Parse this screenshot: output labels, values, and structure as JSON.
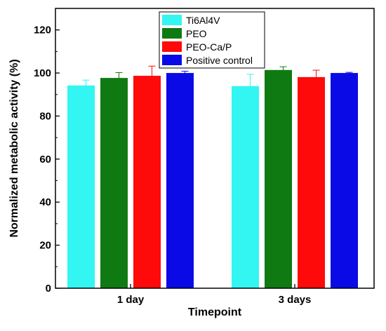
{
  "chart_data": {
    "type": "bar",
    "xlabel": "Timepoint",
    "ylabel": "Normalized metabolic activity (%)",
    "ylim": [
      0,
      130
    ],
    "yticks": [
      0,
      20,
      40,
      60,
      80,
      100,
      120
    ],
    "categories": [
      "1 day",
      "3 days"
    ],
    "series": [
      {
        "name": "Ti6Al4V",
        "color": "#33f5f2",
        "values": [
          94.2,
          93.9
        ],
        "errors": [
          2.5,
          5.5
        ]
      },
      {
        "name": "PEO",
        "color": "#0f7a12",
        "values": [
          97.7,
          101.4
        ],
        "errors": [
          2.5,
          1.5
        ]
      },
      {
        "name": "PEO-Ca/P",
        "color": "#ff0a0a",
        "values": [
          98.7,
          98.1
        ],
        "errors": [
          4.5,
          3.2
        ]
      },
      {
        "name": "Positive control",
        "color": "#0a0ae6",
        "values": [
          100,
          100
        ],
        "errors": [
          0.8,
          0.3
        ]
      }
    ],
    "legend_position": "top-center",
    "grid": false
  }
}
